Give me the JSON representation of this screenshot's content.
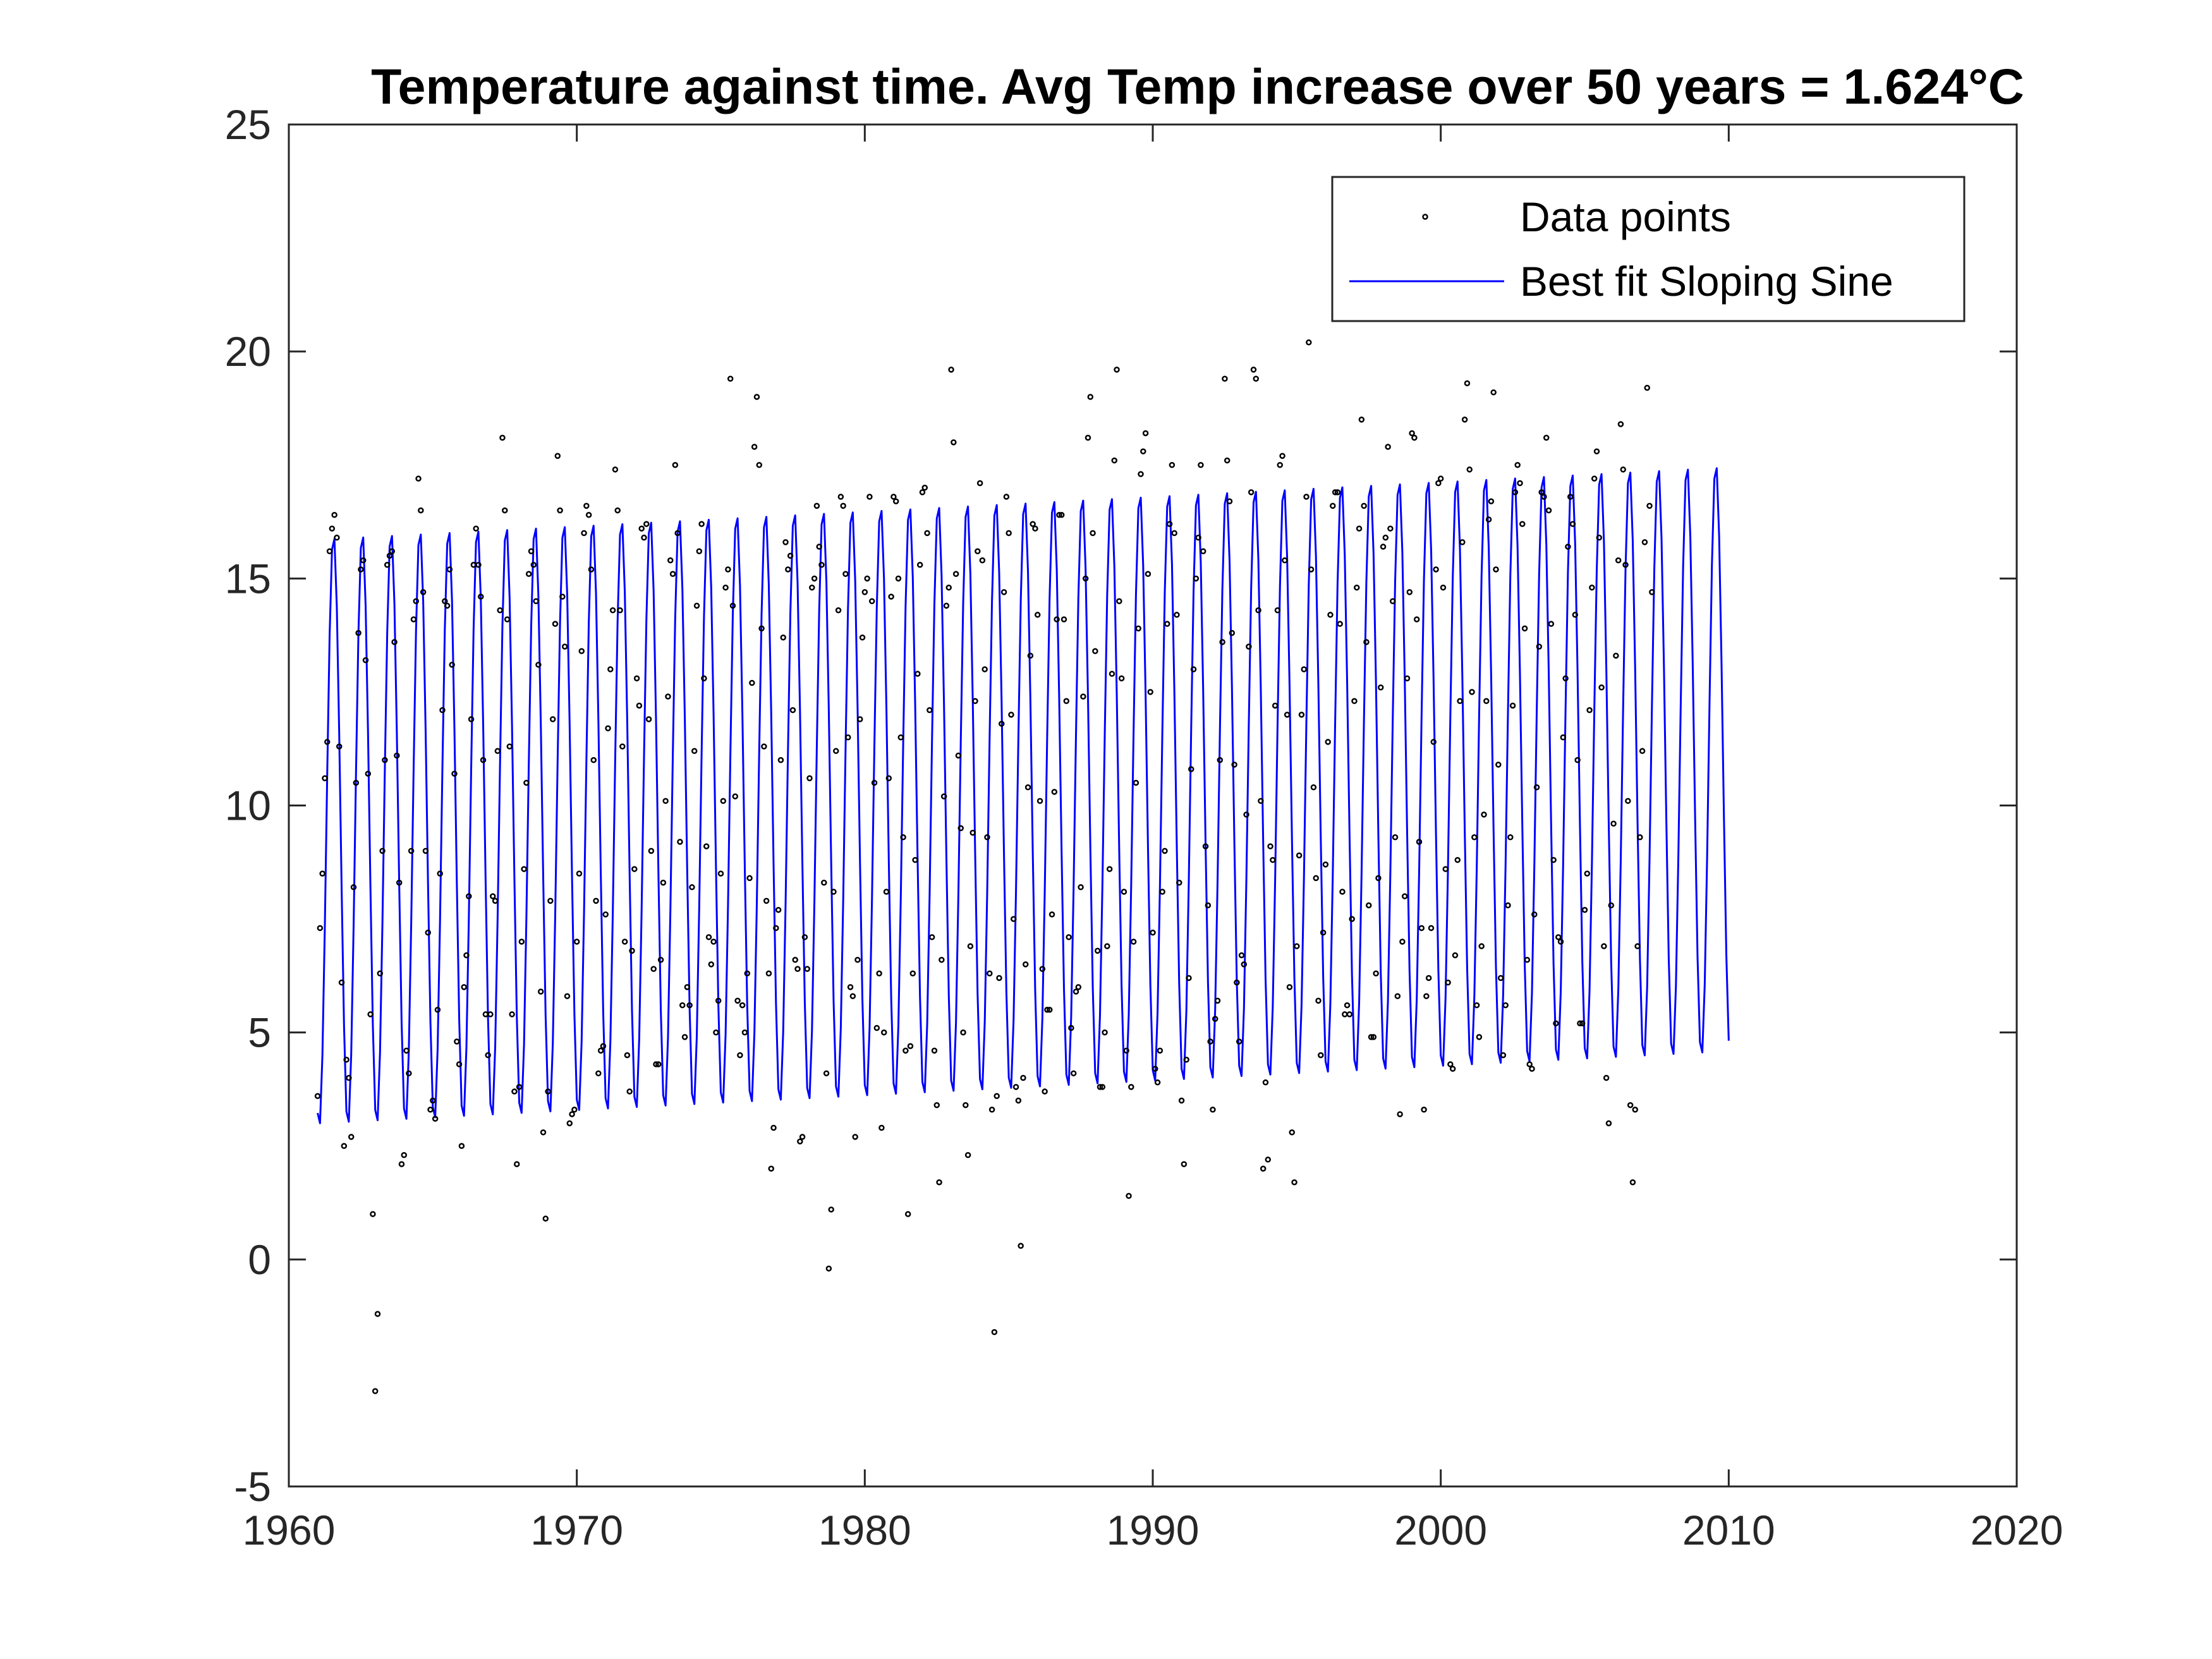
{
  "chart_data": {
    "type": "scatter",
    "title": "Temperature against time. Avg Temp increase over 50 years = 1.624°C",
    "xlabel": "",
    "ylabel": "",
    "xlim": [
      1960,
      2020
    ],
    "ylim": [
      -5,
      25
    ],
    "xticks": [
      1960,
      1970,
      1980,
      1990,
      2000,
      2010,
      2020
    ],
    "yticks": [
      -5,
      0,
      5,
      10,
      15,
      20,
      25
    ],
    "xtick_labels": [
      "1960",
      "1970",
      "1980",
      "1990",
      "2000",
      "2010",
      "2020"
    ],
    "ytick_labels": [
      "-5",
      "0",
      "5",
      "10",
      "15",
      "20",
      "25"
    ],
    "grid": false,
    "legend_position": "top-right",
    "legend": [
      "Data points",
      "Best fit Sloping Sine"
    ],
    "series": [
      {
        "name": "Data points",
        "style": "markers",
        "color": "#000000",
        "x_start": 1961.0,
        "x_step": 0.0833333,
        "y": [
          3.6,
          7.3,
          8.5,
          10.6,
          11.4,
          15.6,
          16.1,
          16.4,
          15.9,
          11.3,
          6.1,
          2.5,
          4.4,
          4.0,
          2.7,
          8.2,
          10.5,
          13.8,
          15.2,
          15.4,
          13.2,
          10.7,
          5.4,
          1.0,
          -2.9,
          -1.2,
          6.3,
          9.0,
          11.0,
          15.3,
          15.5,
          15.6,
          13.6,
          11.1,
          8.3,
          2.1,
          2.3,
          4.6,
          4.1,
          9.0,
          14.1,
          14.5,
          17.2,
          16.5,
          14.7,
          9.0,
          7.2,
          3.3,
          3.5,
          3.1,
          5.5,
          8.5,
          12.1,
          14.5,
          14.4,
          15.2,
          13.1,
          10.7,
          4.8,
          4.3,
          2.5,
          6.0,
          6.7,
          8.0,
          11.9,
          15.3,
          16.1,
          15.3,
          14.6,
          11.0,
          5.4,
          4.5,
          5.4,
          8.0,
          7.9,
          11.2,
          14.3,
          18.1,
          16.5,
          14.1,
          11.3,
          5.4,
          3.7,
          2.1,
          3.8,
          7.0,
          8.6,
          10.5,
          15.1,
          15.6,
          15.3,
          14.5,
          13.1,
          5.9,
          2.8,
          0.9,
          3.7,
          7.9,
          11.9,
          14.0,
          17.7,
          16.5,
          14.6,
          13.5,
          5.8,
          3.0,
          3.2,
          3.3,
          7.0,
          8.5,
          13.4,
          16.0,
          16.6,
          16.4,
          15.2,
          11.0,
          7.9,
          4.1,
          4.6,
          4.7,
          7.6,
          11.7,
          13.0,
          14.3,
          17.4,
          16.5,
          14.3,
          11.3,
          7.0,
          4.5,
          3.7,
          6.8,
          8.6,
          12.8,
          12.2,
          16.1,
          15.9,
          16.2,
          11.9,
          9.0,
          6.4,
          4.3,
          4.3,
          6.6,
          8.3,
          10.1,
          12.4,
          15.4,
          15.1,
          17.5,
          16.0,
          9.2,
          5.6,
          4.9,
          6.0,
          5.6,
          8.2,
          11.2,
          14.4,
          15.6,
          16.2,
          12.8,
          9.1,
          7.1,
          6.5,
          7.0,
          5.0,
          5.7,
          8.5,
          10.1,
          14.8,
          15.2,
          19.4,
          14.4,
          10.2,
          5.7,
          4.5,
          5.6,
          5.0,
          6.3,
          8.4,
          12.7,
          17.9,
          19.0,
          17.5,
          13.9,
          11.3,
          7.9,
          6.3,
          2.0,
          2.9,
          7.3,
          7.7,
          11.0,
          13.7,
          15.8,
          15.2,
          15.5,
          12.1,
          6.6,
          6.4,
          2.6,
          2.7,
          7.1,
          6.4,
          10.6,
          14.8,
          15.0,
          16.6,
          15.7,
          15.3,
          8.3,
          4.1,
          -0.2,
          1.1,
          8.1,
          11.2,
          14.3,
          16.8,
          16.6,
          15.1,
          11.5,
          6.0,
          5.8,
          2.7,
          6.6,
          11.9,
          13.7,
          14.7,
          15.0,
          16.8,
          14.5,
          10.5,
          5.1,
          6.3,
          2.9,
          5.0,
          8.1,
          10.6,
          14.6,
          16.8,
          16.7,
          15.0,
          11.5,
          9.3,
          4.6,
          1.0,
          4.7,
          6.3,
          8.8,
          12.9,
          15.3,
          16.9,
          17.0,
          16.0,
          12.1,
          7.1,
          4.6,
          3.4,
          1.7,
          6.6,
          10.2,
          14.4,
          14.8,
          19.6,
          18.0,
          15.1,
          11.1,
          9.5,
          5.0,
          3.4,
          2.3,
          6.9,
          9.4,
          12.3,
          15.6,
          17.1,
          15.4,
          13.0,
          9.3,
          6.3,
          3.3,
          -1.6,
          3.6,
          6.2,
          11.8,
          14.7,
          16.8,
          16.0,
          12.0,
          7.5,
          3.8,
          3.5,
          0.3,
          4.0,
          6.5,
          10.4,
          13.3,
          16.2,
          16.1,
          14.2,
          10.1,
          6.4,
          3.7,
          5.5,
          5.5,
          7.6,
          10.3,
          14.1,
          16.4,
          16.4,
          14.1,
          12.3,
          7.1,
          5.1,
          4.1,
          5.9,
          6.0,
          8.2,
          12.4,
          15.0,
          18.1,
          19.0,
          16.0,
          13.4,
          6.8,
          3.8,
          3.8,
          5.0,
          6.9,
          8.6,
          12.9,
          17.6,
          19.6,
          14.5,
          12.8,
          8.1,
          4.6,
          1.4,
          3.8,
          7.0,
          10.5,
          13.9,
          17.3,
          17.8,
          18.2,
          15.1,
          12.5,
          7.2,
          4.2,
          3.9,
          4.6,
          8.1,
          9.0,
          14.0,
          16.2,
          17.5,
          16.0,
          14.2,
          8.3,
          3.5,
          2.1,
          4.4,
          6.2,
          10.8,
          13.0,
          15.0,
          15.9,
          17.5,
          15.6,
          9.1,
          7.8,
          4.8,
          3.3,
          5.3,
          5.7,
          11.0,
          13.6,
          19.4,
          17.6,
          16.7,
          13.8,
          10.9,
          6.1,
          4.8,
          6.7,
          6.5,
          9.8,
          13.5,
          16.9,
          19.6,
          19.4,
          14.3,
          10.1,
          2.0,
          3.9,
          2.2,
          9.1,
          8.8,
          12.2,
          14.3,
          17.5,
          17.7,
          15.4,
          12.0,
          6.0,
          2.8,
          1.7,
          6.9,
          8.9,
          12.0,
          13.0,
          16.8,
          20.2,
          15.2,
          10.4,
          8.4,
          5.7,
          4.5,
          7.2,
          8.7,
          11.4,
          14.2,
          16.6,
          16.9,
          16.9,
          14.0,
          8.1,
          5.4,
          5.6,
          5.4,
          7.5,
          12.3,
          14.8,
          16.1,
          18.5,
          16.6,
          13.6,
          7.8,
          4.9,
          4.9,
          6.3,
          8.4,
          12.6,
          15.7,
          15.9,
          17.9,
          16.1,
          14.5,
          9.3,
          5.8,
          3.2,
          7.0,
          8.0,
          12.8,
          14.7,
          18.2,
          18.1,
          14.1,
          9.2,
          7.3,
          3.3,
          5.8,
          6.2,
          7.3,
          11.4,
          15.2,
          17.1,
          17.2,
          14.8,
          8.6,
          6.1,
          4.3,
          4.2,
          6.7,
          8.8,
          12.3,
          15.8,
          18.5,
          19.3,
          17.4,
          12.5,
          9.3,
          5.6,
          4.9,
          6.9,
          9.8,
          12.3,
          16.3,
          16.7,
          19.1,
          15.2,
          10.9,
          6.2,
          4.5,
          5.6,
          7.8,
          9.3,
          12.2,
          16.9,
          17.5,
          17.1,
          16.2,
          13.9,
          6.6,
          4.3,
          4.2,
          7.6,
          10.4,
          13.5,
          16.9,
          16.8,
          18.1,
          16.5,
          14.0,
          8.8,
          5.2,
          7.1,
          7.0,
          11.5,
          12.8,
          15.7,
          16.8,
          16.2,
          14.2,
          11.0,
          5.2,
          5.2,
          7.7,
          8.5,
          12.1,
          14.8,
          17.2,
          17.8,
          15.9,
          12.6,
          6.9,
          4.0,
          3.0,
          7.8,
          9.6,
          13.3,
          15.4,
          18.4,
          17.4,
          15.3,
          10.1,
          3.4,
          1.7,
          3.3,
          6.9,
          9.3,
          11.2,
          15.8,
          19.2,
          16.6,
          14.7
        ]
      },
      {
        "name": "Best fit Sloping Sine",
        "style": "line",
        "color": "#0000FF",
        "model": "T(t) = 9.425 + 0.03248*(t - 1961) + 6.55*sin(2*pi*(t - 1961) - 1.9)",
        "x_start": 1961.0,
        "x_end": 2010.0,
        "x_step": 0.0833333
      }
    ]
  }
}
